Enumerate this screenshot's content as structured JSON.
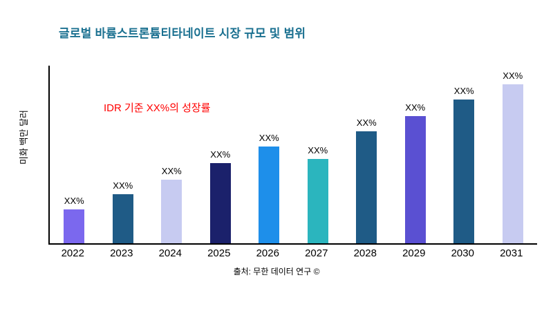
{
  "title": "글로벌 바륨스트론튬티타네이트 시장 규모 및 범위",
  "ylabel": "미화 백만 달러",
  "annotation": "IDR 기준 XX%의 성장률",
  "source": "출처: 무한 데이터 연구 ©",
  "colors": {
    "title": "#1A7090",
    "annotation": "#FF0000",
    "axis": "#000000"
  },
  "chart_data": {
    "type": "bar",
    "title": "글로벌 바륨스트론튬티타네이트 시장 규모 및 범위",
    "xlabel": "",
    "ylabel": "미화 백만 달러",
    "categories": [
      "2022",
      "2023",
      "2024",
      "2025",
      "2026",
      "2027",
      "2028",
      "2029",
      "2030",
      "2031"
    ],
    "values": [
      49,
      71,
      92,
      116,
      140,
      122,
      162,
      184,
      208,
      230
    ],
    "bar_labels": [
      "XX%",
      "XX%",
      "XX%",
      "XX%",
      "XX%",
      "XX%",
      "XX%",
      "XX%",
      "XX%",
      "XX%"
    ],
    "bar_colors": [
      "#7B68EE",
      "#1F5B86",
      "#C7CBF1",
      "#1B216B",
      "#1E8FEA",
      "#2BB5BE",
      "#1F5B86",
      "#5A50D2",
      "#1F5B86",
      "#C7CBF1"
    ],
    "ylim": [
      0,
      260
    ],
    "grid": false,
    "legend": "none",
    "value_units": "relative (axis unlabeled, values estimated in pixels of bar height)"
  }
}
